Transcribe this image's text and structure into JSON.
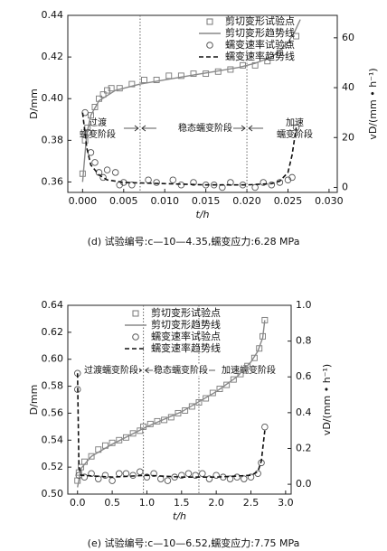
{
  "chart_data": [
    {
      "type": "scatter",
      "ylabel": "D/mm",
      "xlabel": "t/h",
      "y2label": "vD/(mm • h⁻¹)",
      "caption": "(d) 试验编号:c—10—4.35,蠕变应力:6.28 MPa",
      "xlim": [
        -0.0018,
        0.031
      ],
      "ylim": [
        0.355,
        0.44
      ],
      "y2lim": [
        -2,
        69
      ],
      "xticks": [
        {
          "value": 0,
          "label": "0.000"
        },
        0.005,
        {
          "value": 0.01,
          "label": "0.010"
        },
        0.015,
        {
          "value": 0.02,
          "label": "0.020"
        },
        0.025,
        {
          "value": 0.03,
          "label": "0.030"
        }
      ],
      "yticks": [
        0.36,
        0.38,
        {
          "value": 0.4,
          "label": "0.40"
        },
        0.42,
        0.44
      ],
      "y2ticks": [
        0,
        20,
        40,
        60
      ],
      "stage_boundaries": [
        0.007,
        0.02
      ],
      "annotations": [
        "过渡",
        "蠕变阶段",
        "稳态蠕变阶段",
        "加速",
        "蠕变阶段"
      ],
      "series": [
        {
          "name": "剪切变形试验点",
          "type": "scatter",
          "marker": "square",
          "color": "#777777",
          "x": [
            0,
            0.0003,
            0.0006,
            0.001,
            0.0015,
            0.002,
            0.0025,
            0.003,
            0.0035,
            0.0045,
            0.006,
            0.0075,
            0.009,
            0.0105,
            0.012,
            0.0135,
            0.015,
            0.0165,
            0.018,
            0.0195,
            0.021,
            0.0225,
            0.024,
            0.025,
            0.026
          ],
          "values": [
            0.364,
            0.38,
            0.386,
            0.392,
            0.396,
            0.4,
            0.402,
            0.404,
            0.405,
            0.405,
            0.407,
            0.409,
            0.409,
            0.411,
            0.411,
            0.412,
            0.412,
            0.413,
            0.414,
            0.416,
            0.416,
            0.418,
            0.422,
            0.426,
            0.43
          ]
        },
        {
          "name": "剪切变形趋势线",
          "type": "line",
          "color": "#888888",
          "x": [
            0,
            0.0005,
            0.001,
            0.002,
            0.004,
            0.007,
            0.01,
            0.013,
            0.016,
            0.019,
            0.021,
            0.023,
            0.024,
            0.025,
            0.0258,
            0.0265
          ],
          "values": [
            0.36,
            0.383,
            0.392,
            0.399,
            0.404,
            0.407,
            0.409,
            0.411,
            0.413,
            0.415,
            0.417,
            0.42,
            0.423,
            0.427,
            0.432,
            0.438
          ]
        },
        {
          "name": "蠕变速率试验点",
          "type": "scatter",
          "marker": "circle",
          "color": "#555555",
          "axis": "y2",
          "x": [
            0.0003,
            0.0007,
            0.001,
            0.0015,
            0.002,
            0.0025,
            0.003,
            0.004,
            0.0045,
            0.005,
            0.006,
            0.008,
            0.009,
            0.011,
            0.012,
            0.0135,
            0.015,
            0.016,
            0.017,
            0.018,
            0.0195,
            0.021,
            0.022,
            0.023,
            0.024,
            0.025,
            0.0255,
            0.026
          ],
          "values": [
            30,
            22,
            14,
            10,
            6,
            4,
            7,
            6,
            1,
            2,
            1,
            3,
            2,
            3,
            1,
            2,
            1,
            1,
            0,
            2,
            1,
            0,
            2,
            1,
            2,
            3,
            4,
            24
          ]
        },
        {
          "name": "蠕变速率趋势线",
          "type": "line",
          "dash": true,
          "color": "#111111",
          "axis": "y2",
          "x": [
            0,
            0.0005,
            0.001,
            0.002,
            0.003,
            0.005,
            0.01,
            0.015,
            0.02,
            0.023,
            0.024,
            0.025,
            0.0255,
            0.026
          ],
          "values": [
            30,
            16,
            9,
            5,
            3,
            2,
            1.5,
            1,
            1,
            1.5,
            2.5,
            6,
            13,
            24
          ]
        }
      ]
    },
    {
      "type": "scatter",
      "ylabel": "D/mm",
      "xlabel": "t/h",
      "y2label": "vD/(mm • h⁻¹)",
      "caption": "(e) 试验编号:c—10—6.52,蠕变应力:7.75 MPa",
      "xlim": [
        -0.14,
        3.08
      ],
      "ylim": [
        0.5,
        0.64
      ],
      "y2lim": [
        -0.055,
        1.0
      ],
      "xticks": [
        {
          "value": 0,
          "label": "0.0"
        },
        0.5,
        {
          "value": 1,
          "label": "1.0"
        },
        1.5,
        {
          "value": 2,
          "label": "2.0"
        },
        2.5,
        {
          "value": 3,
          "label": "3.0"
        }
      ],
      "yticks": [
        {
          "value": 0.5,
          "label": "0.50"
        },
        0.52,
        0.54,
        0.56,
        0.58,
        {
          "value": 0.6,
          "label": "0.60"
        },
        0.62,
        0.64
      ],
      "y2ticks": [
        {
          "value": 0,
          "label": "0.0"
        },
        0.2,
        0.4,
        0.6,
        0.8,
        {
          "value": 1,
          "label": "1.0"
        }
      ],
      "stage_boundaries": [
        0.95,
        1.75
      ],
      "annotations": [
        "过渡蠕变阶段",
        "稳态蠕变阶段",
        "加速蠕变阶段"
      ],
      "series": [
        {
          "name": "剪切变形试验点",
          "type": "scatter",
          "marker": "square",
          "color": "#777777",
          "x": [
            0,
            0.02,
            0.05,
            0.1,
            0.2,
            0.3,
            0.4,
            0.5,
            0.6,
            0.7,
            0.8,
            0.9,
            0.95,
            1.05,
            1.15,
            1.25,
            1.35,
            1.45,
            1.55,
            1.65,
            1.75,
            1.85,
            1.95,
            2.05,
            2.15,
            2.25,
            2.35,
            2.45,
            2.55,
            2.62,
            2.67,
            2.7
          ],
          "values": [
            0.51,
            0.516,
            0.52,
            0.524,
            0.528,
            0.533,
            0.536,
            0.538,
            0.54,
            0.542,
            0.545,
            0.547,
            0.55,
            0.552,
            0.554,
            0.555,
            0.557,
            0.56,
            0.562,
            0.565,
            0.568,
            0.571,
            0.575,
            0.578,
            0.581,
            0.585,
            0.589,
            0.595,
            0.601,
            0.608,
            0.617,
            0.629
          ]
        },
        {
          "name": "剪切变形趋势线",
          "type": "line",
          "color": "#888888",
          "x": [
            0,
            0.05,
            0.2,
            0.5,
            1.0,
            1.5,
            2.0,
            2.3,
            2.5,
            2.6,
            2.67,
            2.7
          ],
          "values": [
            0.505,
            0.519,
            0.528,
            0.537,
            0.55,
            0.561,
            0.576,
            0.587,
            0.598,
            0.606,
            0.616,
            0.629
          ]
        },
        {
          "name": "蠕变速率试验点",
          "type": "scatter",
          "marker": "circle",
          "color": "#555555",
          "axis": "y2",
          "x": [
            0,
            0,
            0.02,
            0.1,
            0.2,
            0.3,
            0.4,
            0.5,
            0.6,
            0.7,
            0.8,
            0.9,
            1.0,
            1.1,
            1.2,
            1.3,
            1.4,
            1.5,
            1.6,
            1.7,
            1.8,
            1.9,
            2.0,
            2.1,
            2.2,
            2.3,
            2.4,
            2.5,
            2.6,
            2.65,
            2.7
          ],
          "values": [
            0.62,
            0.53,
            0.05,
            0.04,
            0.06,
            0.03,
            0.05,
            0.02,
            0.06,
            0.06,
            0.05,
            0.07,
            0.04,
            0.06,
            0.03,
            0.02,
            0.04,
            0.05,
            0.06,
            0.05,
            0.06,
            0.03,
            0.05,
            0.04,
            0.03,
            0.04,
            0.03,
            0.04,
            0.06,
            0.12,
            0.32
          ]
        },
        {
          "name": "蠕变速率趋势线",
          "type": "line",
          "dash": true,
          "color": "#111111",
          "axis": "y2",
          "x": [
            0,
            0.02,
            0.05,
            0.5,
            1.0,
            1.5,
            2.0,
            2.5,
            2.6,
            2.65,
            2.7
          ],
          "values": [
            0.62,
            0.1,
            0.05,
            0.04,
            0.05,
            0.04,
            0.04,
            0.05,
            0.07,
            0.13,
            0.3
          ]
        }
      ]
    }
  ]
}
